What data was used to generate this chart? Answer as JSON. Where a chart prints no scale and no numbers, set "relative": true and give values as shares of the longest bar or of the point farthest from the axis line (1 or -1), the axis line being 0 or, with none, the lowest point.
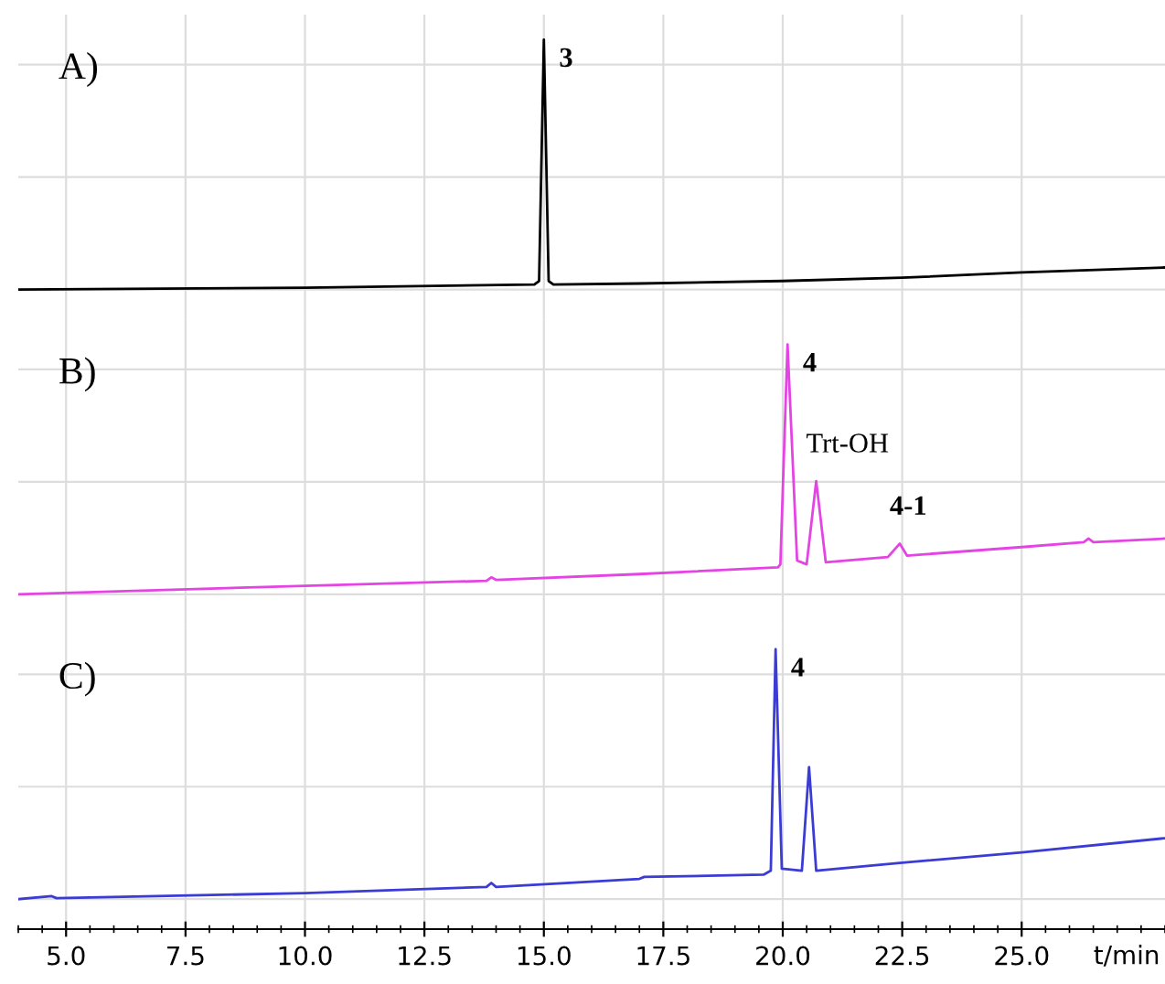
{
  "chart_data": [
    {
      "type": "line",
      "relative": true,
      "grid": true,
      "tick_labels": false,
      "xlim": [
        4.0,
        28.0
      ],
      "xticks": [
        {
          "value": 5,
          "label": null
        },
        {
          "value": 7.5,
          "label": null
        },
        {
          "value": 10,
          "label": null
        },
        {
          "value": 12.5,
          "label": null
        },
        {
          "value": 15,
          "label": null
        },
        {
          "value": 17.5,
          "label": null
        },
        {
          "value": 20,
          "label": null
        },
        {
          "value": 22.5,
          "label": null
        },
        {
          "value": 25,
          "label": null
        }
      ],
      "annotations": [
        "A)",
        {
          "text": "3",
          "x": 15.0,
          "y": 1.0
        }
      ],
      "series": [
        {
          "color": "#000000",
          "x": [
            4.0,
            10.0,
            14.8,
            14.9,
            15.0,
            15.1,
            15.2,
            17.0,
            20.0,
            22.5,
            25.0,
            28.0
          ],
          "values": [
            0,
            0.007,
            0.02,
            0.034,
            1.0,
            0.034,
            0.02,
            0.024,
            0.034,
            0.047,
            0.068,
            0.088
          ]
        }
      ]
    },
    {
      "type": "line",
      "relative": true,
      "grid": true,
      "tick_labels": false,
      "xlim": [
        4.0,
        28.0
      ],
      "xticks": [
        {
          "value": 5,
          "label": null
        },
        {
          "value": 7.5,
          "label": null
        },
        {
          "value": 10,
          "label": null
        },
        {
          "value": 12.5,
          "label": null
        },
        {
          "value": 15,
          "label": null
        },
        {
          "value": 17.5,
          "label": null
        },
        {
          "value": 20,
          "label": null
        },
        {
          "value": 22.5,
          "label": null
        },
        {
          "value": 25,
          "label": null
        }
      ],
      "annotations": [
        "B)",
        {
          "text": "4",
          "x": 20.1,
          "y": 1.0
        },
        {
          "text": "Trt-OH",
          "x": 20.7,
          "y": 0.453
        },
        {
          "text": "4-1",
          "x": 22.45,
          "y": 0.203
        }
      ],
      "series": [
        {
          "color": "#e344e3",
          "x": [
            4.0,
            10.0,
            13.8,
            13.9,
            14.0,
            17.0,
            19.9,
            19.95,
            20.1,
            20.3,
            20.5,
            20.7,
            20.9,
            22.2,
            22.45,
            22.6,
            25.0,
            26.3,
            26.4,
            26.5,
            28.0
          ],
          "values": [
            0,
            0.034,
            0.054,
            0.068,
            0.058,
            0.081,
            0.108,
            0.12,
            1.0,
            0.135,
            0.12,
            0.453,
            0.128,
            0.149,
            0.203,
            0.155,
            0.189,
            0.209,
            0.223,
            0.209,
            0.223
          ]
        }
      ]
    },
    {
      "type": "line",
      "relative": true,
      "grid": true,
      "tick_labels": "x",
      "xlim": [
        4.0,
        28.0
      ],
      "xticks": [
        {
          "value": 5,
          "label": "5.0"
        },
        {
          "value": 7.5,
          "label": "7.5"
        },
        {
          "value": 10,
          "label": "10.0"
        },
        {
          "value": 12.5,
          "label": "12.5"
        },
        {
          "value": 15,
          "label": "15.0"
        },
        {
          "value": 17.5,
          "label": "17.5"
        },
        {
          "value": 20,
          "label": "20.0"
        },
        {
          "value": 22.5,
          "label": "22.5"
        },
        {
          "value": 25,
          "label": "25.0"
        }
      ],
      "xlabel": "t/min",
      "annotations": [
        "C)",
        {
          "text": "4",
          "x": 19.85,
          "y": 1.0
        }
      ],
      "series": [
        {
          "color": "#3b3bd6",
          "x": [
            4.0,
            4.7,
            4.8,
            10.0,
            13.8,
            13.9,
            14.0,
            17.0,
            17.1,
            19.6,
            19.75,
            19.85,
            19.98,
            20.4,
            20.55,
            20.7,
            22.5,
            25.0,
            28.0
          ],
          "values": [
            0,
            0.012,
            0.004,
            0.024,
            0.049,
            0.065,
            0.049,
            0.081,
            0.089,
            0.098,
            0.114,
            1.0,
            0.122,
            0.114,
            0.528,
            0.114,
            0.146,
            0.187,
            0.244
          ]
        }
      ]
    }
  ]
}
